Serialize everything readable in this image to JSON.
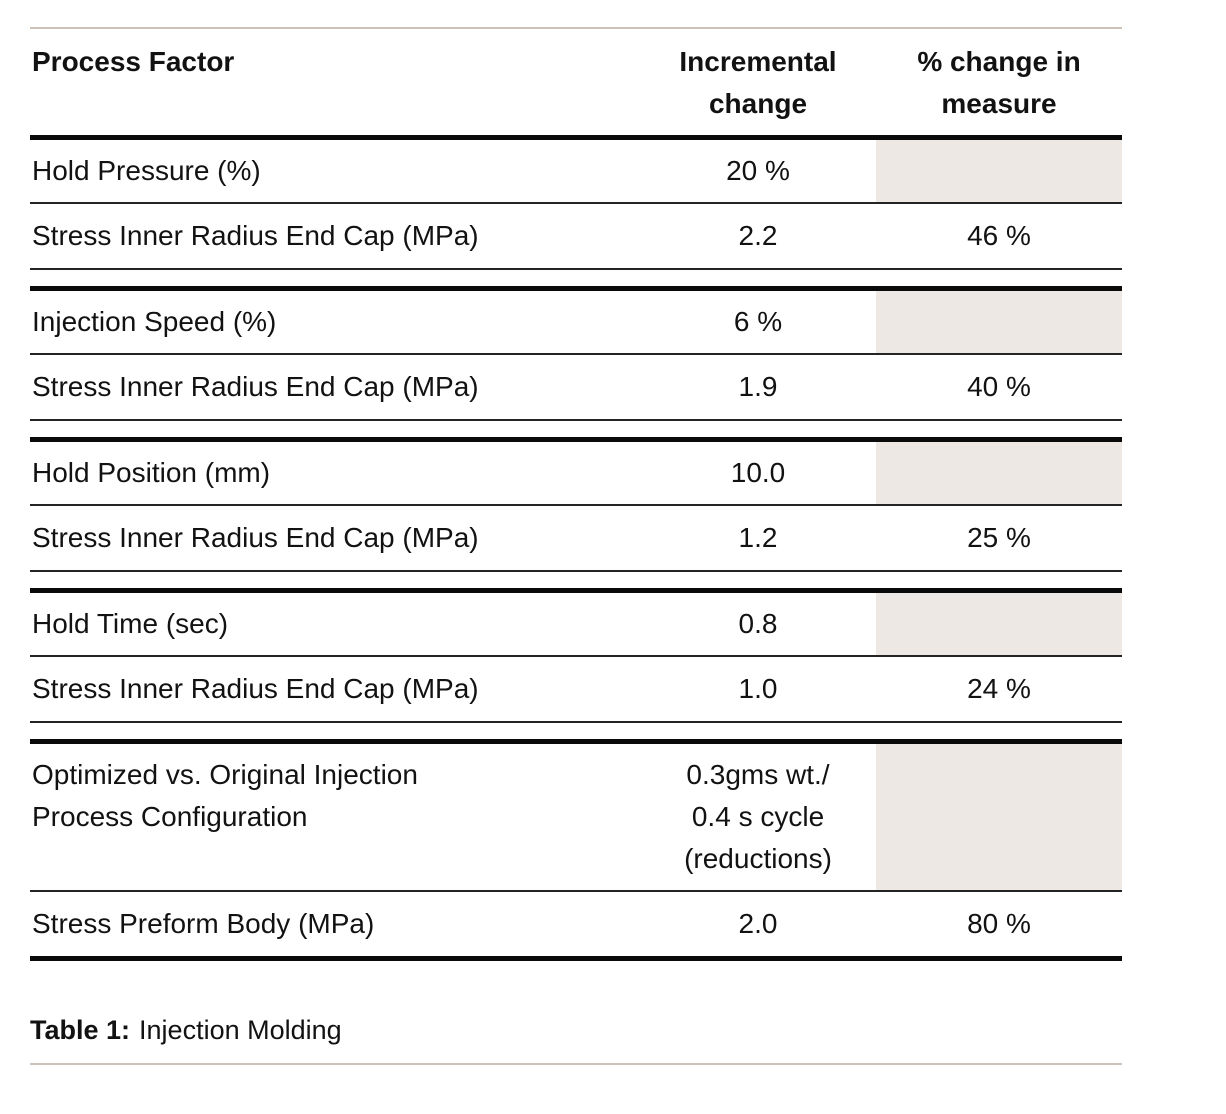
{
  "table": {
    "header": {
      "process_factor": "Process Factor",
      "incremental_change": "Incremental\nchange",
      "percent_change_in_measure": "% change in\nmeasure"
    },
    "groups": [
      {
        "factor": {
          "label": "Hold Pressure (%)",
          "change": "20 %",
          "measure": ""
        },
        "result": {
          "label": "Stress Inner Radius End Cap (MPa)",
          "change": "2.2",
          "measure": "46 %"
        }
      },
      {
        "factor": {
          "label": "Injection Speed (%)",
          "change": "6 %",
          "measure": ""
        },
        "result": {
          "label": "Stress Inner Radius End Cap (MPa)",
          "change": "1.9",
          "measure": "40 %"
        }
      },
      {
        "factor": {
          "label": "Hold Position (mm)",
          "change": "10.0",
          "measure": ""
        },
        "result": {
          "label": "Stress Inner Radius End Cap (MPa)",
          "change": "1.2",
          "measure": "25 %"
        }
      },
      {
        "factor": {
          "label": "Hold Time (sec)",
          "change": "0.8",
          "measure": ""
        },
        "result": {
          "label": "Stress Inner Radius End Cap (MPa)",
          "change": "1.0",
          "measure": "24 %"
        }
      },
      {
        "factor": {
          "label": "Optimized vs. Original Injection\nProcess Configuration",
          "change": "0.3gms wt./\n0.4 s cycle\n(reductions)",
          "measure": ""
        },
        "result": {
          "label": "Stress Preform Body (MPa)",
          "change": "2.0",
          "measure": "80 %"
        }
      }
    ]
  },
  "caption": {
    "label": "Table 1:",
    "text": "Injection Molding"
  },
  "colors": {
    "shaded_cell": "#ede8e3",
    "accent_rule": "#cdc2b8",
    "thick_rule": "#0a0a0a",
    "thin_rule": "#242424",
    "text": "#121212"
  }
}
